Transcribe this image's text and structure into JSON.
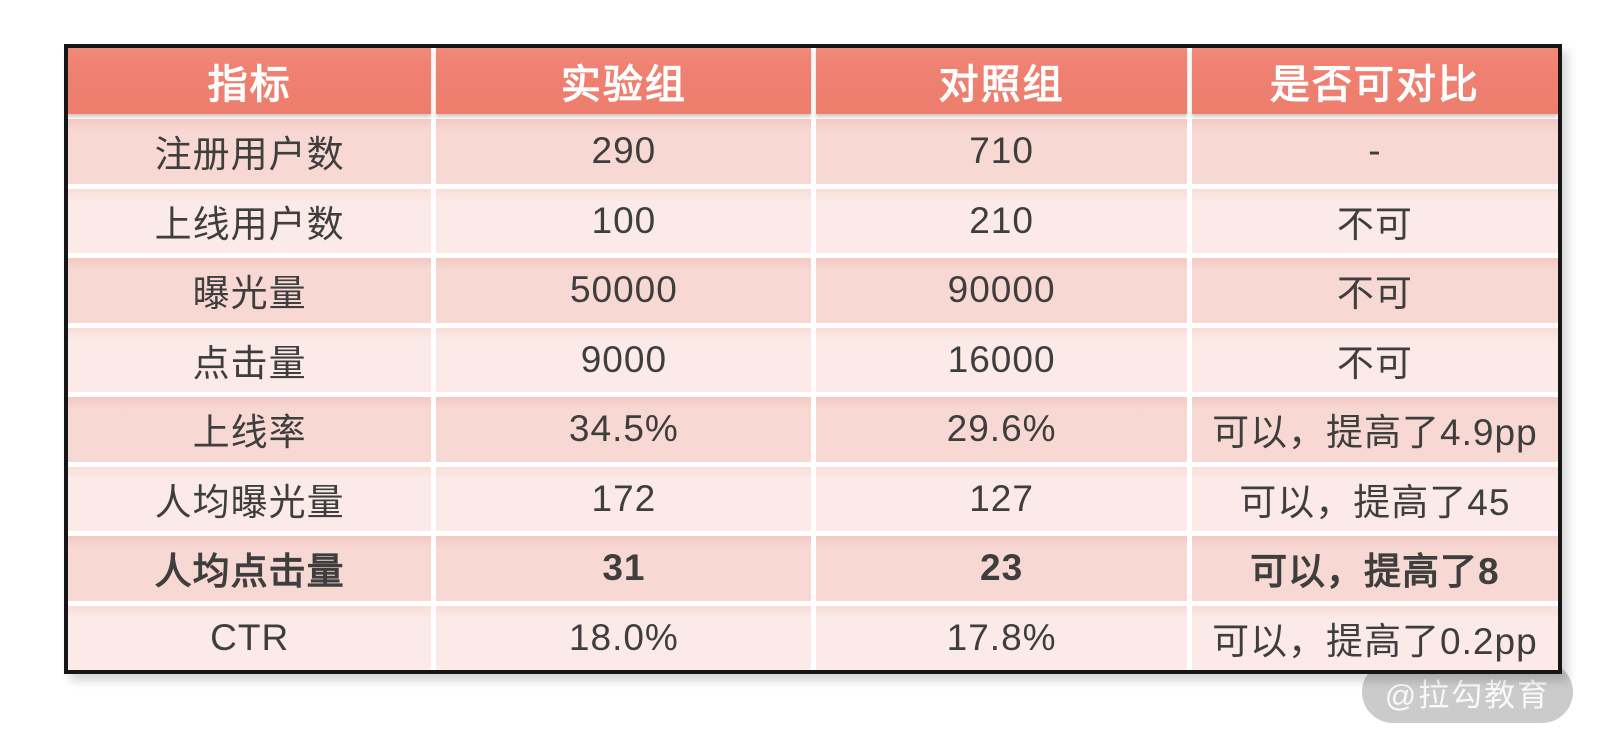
{
  "watermark": {
    "text": "@拉勾教育"
  },
  "colors": {
    "header_bg": "#ef8172",
    "row_odd_bg": "#f8d8d3",
    "row_even_bg": "#fbe9e6",
    "table_border": "#161616",
    "body_text": "#3e3e3e",
    "header_text": "#ffffff",
    "watermark_bg": "#bababa"
  },
  "chart_data": {
    "type": "table",
    "columns": [
      "指标",
      "实验组",
      "对照组",
      "是否可对比"
    ],
    "rows": [
      [
        "注册用户数",
        "290",
        "710",
        "-"
      ],
      [
        "上线用户数",
        "100",
        "210",
        "不可"
      ],
      [
        "曝光量",
        "50000",
        "90000",
        "不可"
      ],
      [
        "点击量",
        "9000",
        "16000",
        "不可"
      ],
      [
        "上线率",
        "34.5%",
        "29.6%",
        "可以，提高了4.9pp"
      ],
      [
        "人均曝光量",
        "172",
        "127",
        "可以，提高了45"
      ],
      [
        "人均点击量",
        "31",
        "23",
        "可以，提高了8"
      ],
      [
        "CTR",
        "18.0%",
        "17.8%",
        "可以，提高了0.2pp"
      ]
    ],
    "emphasized_row": "人均点击量",
    "legend_position": "none",
    "grid": "white-separators"
  }
}
